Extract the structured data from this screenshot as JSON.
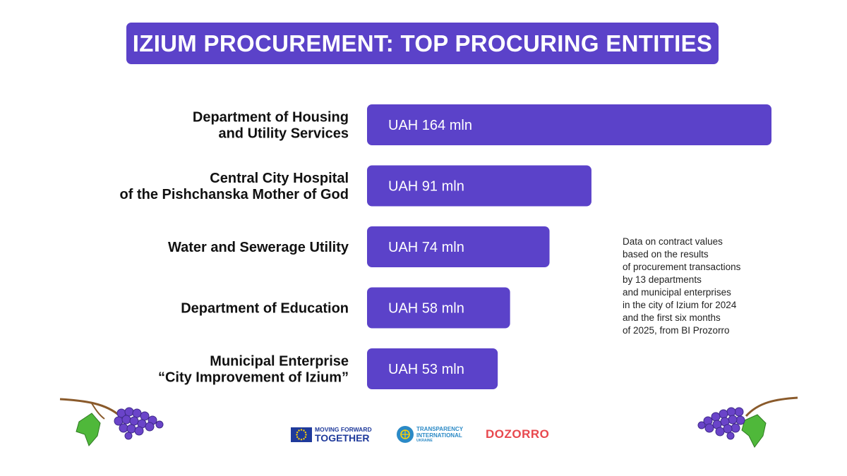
{
  "title": "IZIUM PROCUREMENT: TOP PROCURING ENTITIES",
  "colors": {
    "accent": "#5b42c9",
    "bar_text": "#ffffff",
    "label_text": "#111111"
  },
  "chart_data": {
    "type": "bar",
    "orientation": "horizontal",
    "categories": [
      [
        "Department of Housing",
        "and Utility Services"
      ],
      [
        "Central City Hospital",
        "of the Pishchanska Mother of God"
      ],
      [
        "Water and Sewerage Utility"
      ],
      [
        "Department of Education"
      ],
      [
        "Municipal Enterprise",
        "“City Improvement of Izium”"
      ]
    ],
    "values": [
      164,
      91,
      74,
      58,
      53
    ],
    "data_labels": [
      "UAH 164 mln",
      "UAH 91 mln",
      "UAH 74 mln",
      "UAH 58 mln",
      "UAH 53 mln"
    ],
    "unit": "UAH mln",
    "xlim": [
      0,
      164
    ],
    "grid": false,
    "legend": "none"
  },
  "note": "Data on contract values\nbased on the results\nof procurement transactions\nby 13 departments\nand municipal enterprises\nin the city of Izium for 2024\nand the first six months\nof 2025, from BI Prozorro",
  "logos": {
    "eu_line1": "MOVING FORWARD",
    "eu_line2": "TOGETHER",
    "ti_line1": "TRANSPARENCY",
    "ti_line2": "INTERNATIONAL",
    "ti_line3": "UKRAINE",
    "dozorro": "DOZORRO"
  },
  "decorations": {
    "left_icon": "grapes-icon",
    "right_icon": "grapes-icon"
  }
}
